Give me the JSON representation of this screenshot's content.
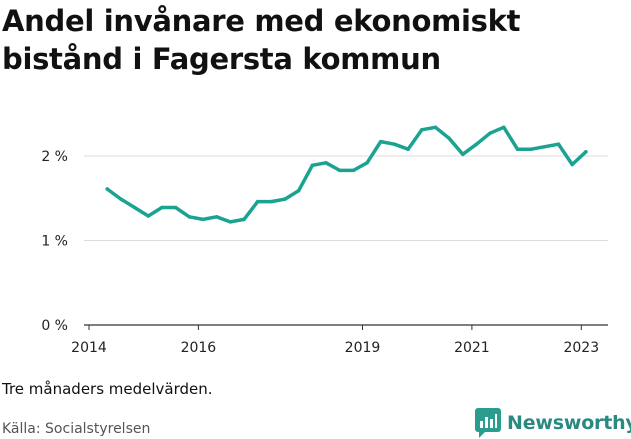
{
  "title": "Andel invånare med ekonomiskt bistånd i Fagersta kommun",
  "note": "Tre månaders medelvärden.",
  "source": "Källa: Socialstyrelsen",
  "brand": {
    "name": "Newsworthy",
    "color": "#2a9d8f",
    "icon": "newsworthy-logo-icon"
  },
  "chart_data": {
    "type": "line",
    "title": "Andel invånare med ekonomiskt bistånd i Fagersta kommun",
    "xlabel": "",
    "ylabel": "",
    "x_ticks": [
      "2014",
      "2016",
      "2019",
      "2021",
      "2023"
    ],
    "y_ticks": [
      "0 %",
      "1 %",
      "2 %"
    ],
    "ylim": [
      0,
      2.5
    ],
    "grid": "horizontal",
    "line_color": "#1aa391",
    "series": [
      {
        "x": [
          "2014-05",
          "2014-08",
          "2014-11",
          "2015-02",
          "2015-05",
          "2015-08",
          "2015-11",
          "2016-02",
          "2016-05",
          "2016-08",
          "2016-11",
          "2017-02",
          "2017-05",
          "2017-08",
          "2017-11",
          "2018-02",
          "2018-05",
          "2018-08",
          "2018-11",
          "2019-02",
          "2019-05",
          "2019-08",
          "2019-11",
          "2020-02",
          "2020-05",
          "2020-08",
          "2020-11",
          "2021-02",
          "2021-05",
          "2021-08",
          "2021-11",
          "2022-02",
          "2022-05",
          "2022-08",
          "2022-11",
          "2023-02"
        ],
        "values": [
          1.61,
          1.49,
          1.39,
          1.29,
          1.39,
          1.39,
          1.28,
          1.25,
          1.28,
          1.22,
          1.25,
          1.46,
          1.46,
          1.49,
          1.59,
          1.89,
          1.92,
          1.83,
          1.83,
          1.92,
          2.17,
          2.14,
          2.08,
          2.31,
          2.34,
          2.21,
          2.02,
          2.14,
          2.27,
          2.34,
          2.08,
          2.08,
          2.11,
          2.14,
          1.9,
          2.05
        ]
      }
    ]
  }
}
